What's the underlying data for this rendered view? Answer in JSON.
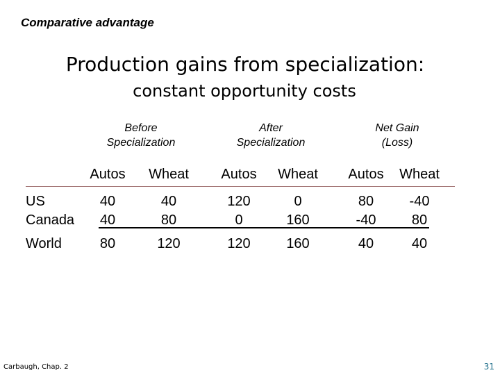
{
  "kicker": "Comparative advantage",
  "title": "Production gains from specialization:",
  "subtitle": "constant opportunity costs",
  "groups": [
    {
      "line1": "Before",
      "line2": "Specialization"
    },
    {
      "line1": "After",
      "line2": "Specialization"
    },
    {
      "line1": "Net Gain",
      "line2": "(Loss)"
    }
  ],
  "columns": [
    "Autos",
    "Wheat",
    "Autos",
    "Wheat",
    "Autos",
    "Wheat"
  ],
  "rows": [
    {
      "label": "US",
      "values": [
        "40",
        "40",
        "120",
        "0",
        "80",
        "-40"
      ]
    },
    {
      "label": "Canada",
      "values": [
        "40",
        "80",
        "0",
        "160",
        "-40",
        "80"
      ]
    },
    {
      "label": "World",
      "values": [
        "80",
        "120",
        "120",
        "160",
        "40",
        "40"
      ]
    }
  ],
  "footer": {
    "source": "Carbaugh, Chap. 2",
    "page": "31"
  },
  "colors": {
    "page_number": "#1f6f8b",
    "header_rule": "#a07070"
  }
}
